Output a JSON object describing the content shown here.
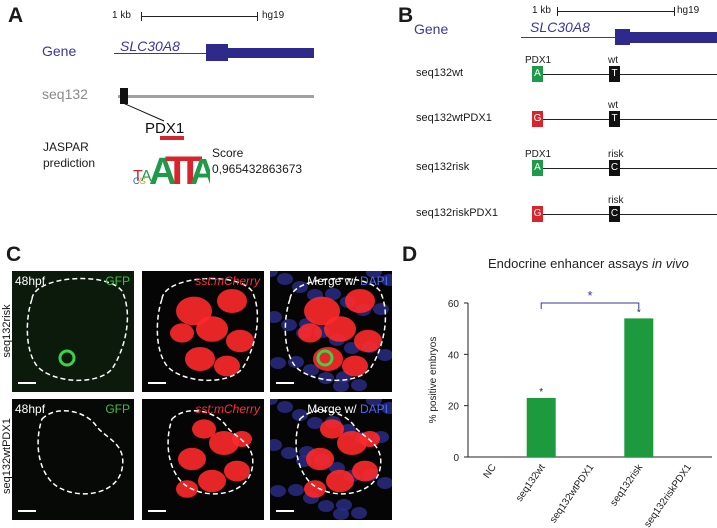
{
  "panels": {
    "A": "A",
    "B": "B",
    "C": "C",
    "D": "D"
  },
  "panel_a": {
    "scale_kb": "1 kb",
    "assembly": "hg19",
    "gene_row_label": "Gene",
    "gene_name": "SLC30A8",
    "seq_row_label": "seq132",
    "motif_name": "PDX1",
    "jaspar_line1": "JASPAR",
    "jaspar_line2": "prediction",
    "score_label": "Score",
    "score_value": "0,965432863673",
    "motif_logo_letters": [
      "T",
      "A",
      "C",
      "G",
      "A",
      "T",
      "T",
      "A"
    ]
  },
  "panel_b": {
    "scale_kb": "1 kb",
    "assembly": "hg19",
    "gene_row_label": "Gene",
    "gene_name": "SLC30A8",
    "rows": [
      {
        "label": "seq132wt",
        "pdx_label": "PDX1",
        "pdx_base": "A",
        "pdx_color": "#1e9a4a",
        "snp_label": "wt",
        "snp_base": "T"
      },
      {
        "label": "seq132wtPDX1",
        "pdx_label": "",
        "pdx_base": "G",
        "pdx_color": "#d8242d",
        "snp_label": "wt",
        "snp_base": "T"
      },
      {
        "label": "seq132risk",
        "pdx_label": "PDX1",
        "pdx_base": "A",
        "pdx_color": "#1e9a4a",
        "snp_label": "risk",
        "snp_base": "C"
      },
      {
        "label": "seq132riskPDX1",
        "pdx_label": "",
        "pdx_base": "G",
        "pdx_color": "#d8242d",
        "snp_label": "risk",
        "snp_base": "C"
      }
    ]
  },
  "panel_c": {
    "rows": [
      {
        "side_label": "seq132risk",
        "stage": "48hpf",
        "gfp": "GFP",
        "mcherry": "sst:mCherry",
        "merge": "Merge w/",
        "dapi": "DAPI"
      },
      {
        "side_label": "seq132wtPDX1",
        "stage": "48hpf",
        "gfp": "GFP",
        "mcherry": "sst:mCherry",
        "merge": "Merge w/",
        "dapi": "DAPI"
      }
    ]
  },
  "chart_data": {
    "type": "bar",
    "title": "Endocrine enhancer assays in vivo",
    "title_main": "Endocrine enhancer assays ",
    "title_italic": "in vivo",
    "ylabel": "% positive embryos",
    "xlabel": "",
    "categories": [
      "NC",
      "seq132wt",
      "seq132wtPDX1",
      "seq132risk",
      "seq132riskPDX1"
    ],
    "values": [
      0,
      23,
      0,
      54,
      0
    ],
    "ylim": [
      0,
      60
    ],
    "yticks": [
      0,
      20,
      40,
      60
    ],
    "bar_color": "#1e9a3e",
    "significance_marks": [
      "*",
      "*"
    ],
    "comparison_mark": "*",
    "comparison_color": "#3a35a0",
    "grid": false
  }
}
